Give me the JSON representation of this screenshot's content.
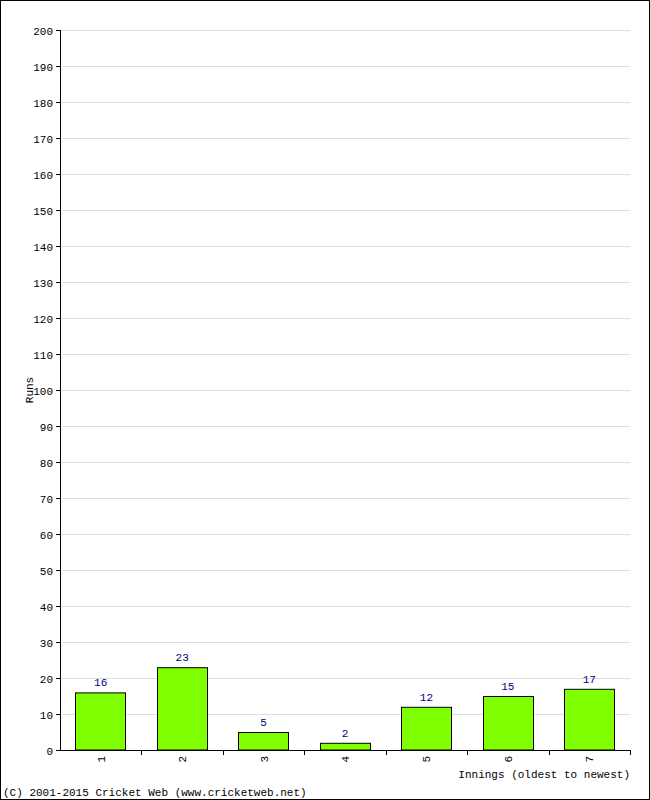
{
  "chart_data": {
    "type": "bar",
    "categories": [
      "1",
      "2",
      "3",
      "4",
      "5",
      "6",
      "7"
    ],
    "values": [
      16,
      23,
      5,
      2,
      12,
      15,
      17
    ],
    "color": "#80ff00",
    "ylim": [
      0,
      200
    ],
    "yticks": [
      0,
      10,
      20,
      30,
      40,
      50,
      60,
      70,
      80,
      90,
      100,
      110,
      120,
      130,
      140,
      150,
      160,
      170,
      180,
      190,
      200
    ],
    "grid": true,
    "data_labels": true,
    "y_label": "Runs",
    "x_label": "Innings (oldest to newest)",
    "annotations": [
      "(C) 2001-2015 Cricket Web (www.cricketweb.net)"
    ]
  }
}
